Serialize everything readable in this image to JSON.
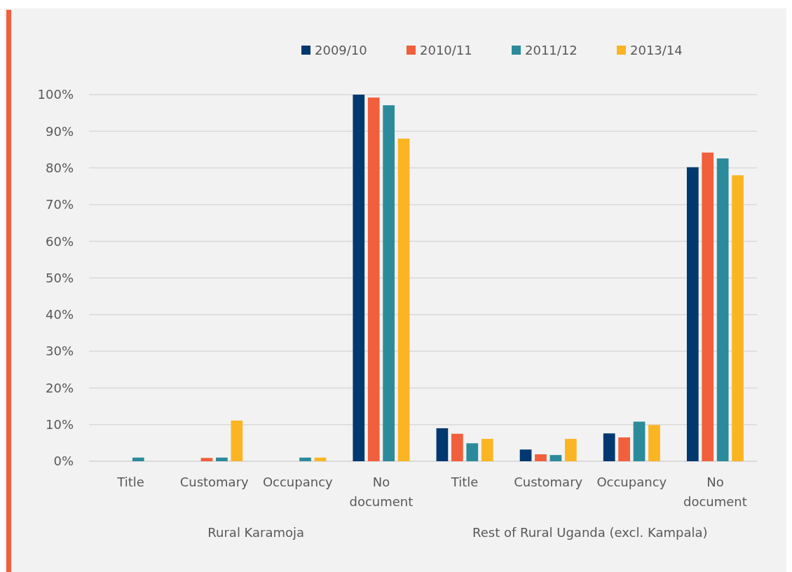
{
  "chart_data": {
    "type": "bar",
    "categories": [
      "Title",
      "Customary",
      "Occupancy",
      "No document",
      "Title",
      "Customary",
      "Occupancy",
      "No document"
    ],
    "series": [
      {
        "name": "2009/10",
        "color": "#003870",
        "values": [
          0,
          0,
          0,
          100,
          9.0,
          3.2,
          7.6,
          80.2
        ]
      },
      {
        "name": "2010/11",
        "color": "#f15f3c",
        "values": [
          0,
          0.9,
          0,
          99.2,
          7.5,
          1.9,
          6.5,
          84.2
        ]
      },
      {
        "name": "2011/12",
        "color": "#2b8b9b",
        "values": [
          1,
          1,
          1,
          97.1,
          4.9,
          1.7,
          10.8,
          82.6
        ]
      },
      {
        "name": "2013/14",
        "color": "#fbb523",
        "values": [
          0,
          11.1,
          1,
          88.0,
          6.1,
          6.1,
          9.9,
          78.0
        ]
      }
    ],
    "ylim": [
      0,
      100
    ],
    "yticks": [
      {
        "value": 0,
        "label": "0%"
      },
      {
        "value": 10,
        "label": "10%"
      },
      {
        "value": 20,
        "label": "20%"
      },
      {
        "value": 30,
        "label": "30%"
      },
      {
        "value": 40,
        "label": "40%"
      },
      {
        "value": 50,
        "label": "50%"
      },
      {
        "value": 60,
        "label": "60%"
      },
      {
        "value": 70,
        "label": "70%"
      },
      {
        "value": 80,
        "label": "80%"
      },
      {
        "value": 90,
        "label": "90%"
      },
      {
        "value": 100,
        "label": "100%"
      }
    ],
    "grid": "y",
    "legend": "top right",
    "annotations": [
      "Rural Karamoja",
      "Rest of Rural Uganda (excl. Kampala)"
    ]
  }
}
